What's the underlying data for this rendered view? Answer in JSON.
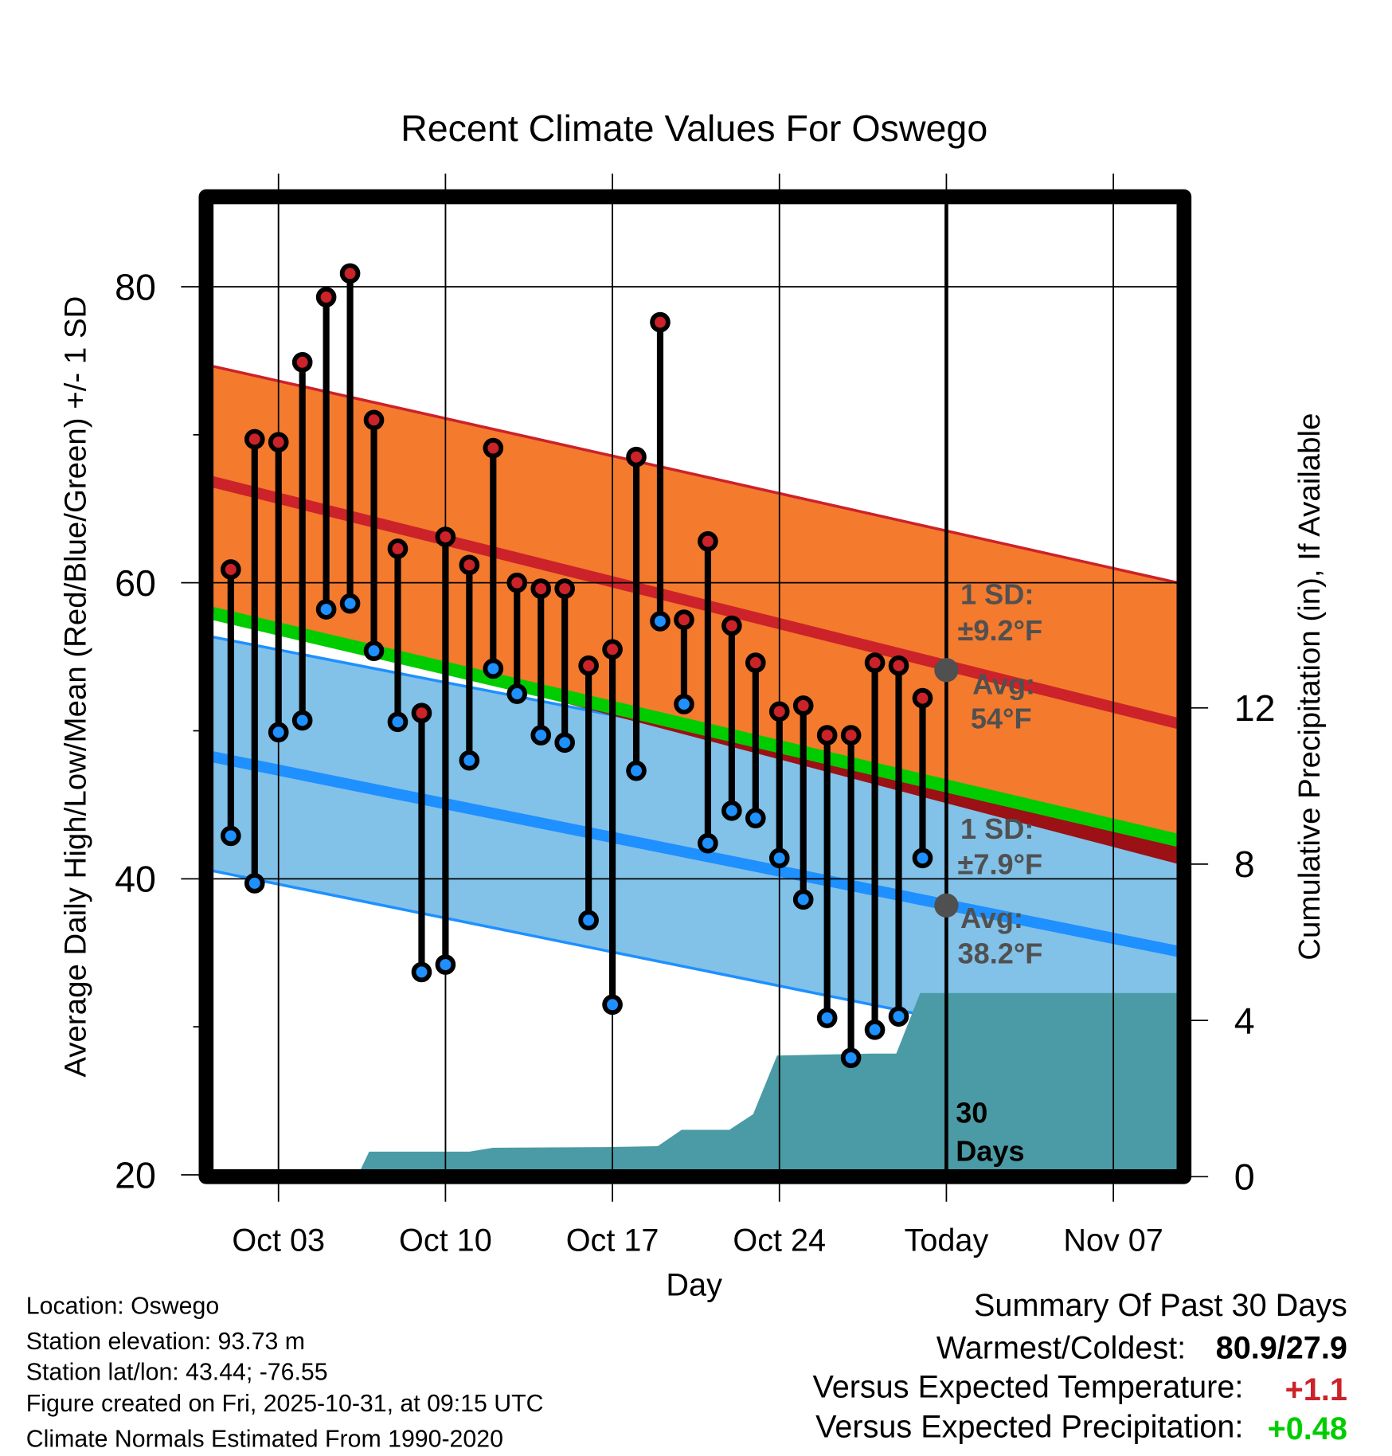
{
  "chart_data": {
    "type": "line",
    "title": "Recent Climate Values For Oswego",
    "xlabel": "Day",
    "ylabel": "Average Daily High/Low/Mean (Red/Blue/Green) +/- 1 SD",
    "y2label": "Cumulative Precipitation (in), If Available",
    "ylim": [
      20,
      86
    ],
    "y2lim": [
      0,
      15.6
    ],
    "xlim_days_since_sep30": [
      0.05,
      40.7
    ],
    "yticks": [
      "20",
      "40",
      "60",
      "80"
    ],
    "y2ticks": [
      "0",
      "4",
      "8",
      "12"
    ],
    "xticks": [
      {
        "day": 3,
        "label": "Oct 03"
      },
      {
        "day": 10,
        "label": "Oct 10"
      },
      {
        "day": 17,
        "label": "Oct 17"
      },
      {
        "day": 24,
        "label": "Oct 24"
      },
      {
        "day": 31,
        "label": "Today"
      },
      {
        "day": 38,
        "label": "Nov 07"
      }
    ],
    "days": [
      1,
      2,
      3,
      4,
      5,
      6,
      7,
      8,
      9,
      10,
      11,
      12,
      13,
      14,
      15,
      16,
      17,
      18,
      19,
      20,
      21,
      22,
      23,
      24,
      25,
      26,
      27,
      28,
      29,
      30
    ],
    "highs": [
      60.9,
      69.7,
      69.5,
      74.9,
      79.3,
      80.9,
      71.0,
      62.3,
      51.2,
      63.1,
      61.2,
      69.1,
      60.0,
      59.6,
      59.6,
      54.4,
      55.5,
      68.5,
      77.6,
      57.5,
      62.8,
      57.1,
      54.6,
      51.3,
      51.7,
      49.7,
      49.7,
      54.6,
      54.4,
      52.2
    ],
    "lows": [
      42.9,
      39.7,
      49.9,
      50.7,
      58.2,
      58.6,
      55.4,
      50.6,
      33.7,
      34.2,
      48.0,
      54.2,
      52.5,
      49.7,
      49.2,
      37.2,
      31.5,
      47.3,
      57.4,
      51.8,
      42.4,
      44.6,
      44.1,
      41.4,
      38.6,
      30.6,
      27.9,
      29.8,
      30.7,
      41.4
    ],
    "normals": {
      "avg_high": [
        66.9,
        50.5
      ],
      "high_plus_sd": [
        74.7,
        60.0
      ],
      "high_minus_sd": [
        58.3,
        41.1
      ],
      "avg_mean": [
        58.0,
        42.6
      ],
      "avg_low": [
        48.3,
        35.1
      ],
      "low_plus_sd": [
        56.4,
        43.6
      ],
      "low_minus_sd": [
        40.6,
        27.3
      ]
    },
    "precip_cumulative": [
      [
        6.3,
        0
      ],
      [
        6.8,
        0.64
      ],
      [
        11,
        0.64
      ],
      [
        12,
        0.74
      ],
      [
        17,
        0.76
      ],
      [
        18.9,
        0.78
      ],
      [
        19.9,
        1.2
      ],
      [
        21.9,
        1.2
      ],
      [
        22.9,
        1.6
      ],
      [
        23.9,
        3.1
      ],
      [
        27.9,
        3.15
      ],
      [
        28.9,
        3.15
      ],
      [
        29.9,
        4.7
      ],
      [
        40.7,
        4.7
      ]
    ],
    "today_day": 31,
    "today_high_avg": 54.1,
    "today_low_avg": 38.2,
    "annotations": {
      "high_sd_label": "1 SD:",
      "high_sd_value": "±9.2°F",
      "high_avg_label": "Avg:",
      "high_avg_value": "54°F",
      "low_sd_label": "1 SD:",
      "low_sd_value": "±7.9°F",
      "low_avg_label": "Avg:",
      "low_avg_value": "38.2°F",
      "period_num": "30",
      "period_unit": "Days"
    },
    "colors": {
      "high_band": "#F47A2E",
      "high_line": "#CC2229",
      "high_edge_dark": "#9B1115",
      "mean_line": "#00CC00",
      "low_band": "#82C1E8",
      "low_line": "#1E90FF",
      "precip": "#4A9BA5",
      "high_dot": "#CC2229",
      "low_dot": "#1E90FF",
      "avg_marker": "#505050"
    }
  },
  "info": {
    "location": "Location: Oswego",
    "elevation": "Station elevation: 93.73 m",
    "latlon": "Station lat/lon: 43.44; -76.55",
    "created": "Figure created on Fri, 2025-10-31, at 09:15 UTC",
    "normals": "Climate Normals Estimated From 1990-2020"
  },
  "summary": {
    "title": "Summary Of Past 30 Days",
    "warmest_label": "Warmest/Coldest:",
    "warmest_value": "80.9/27.9",
    "temp_label": "Versus Expected Temperature:",
    "temp_value": "+1.1",
    "temp_color": "#CC2229",
    "precip_label": "Versus Expected Precipitation:",
    "precip_value": "+0.48",
    "precip_color": "#00CC00"
  }
}
